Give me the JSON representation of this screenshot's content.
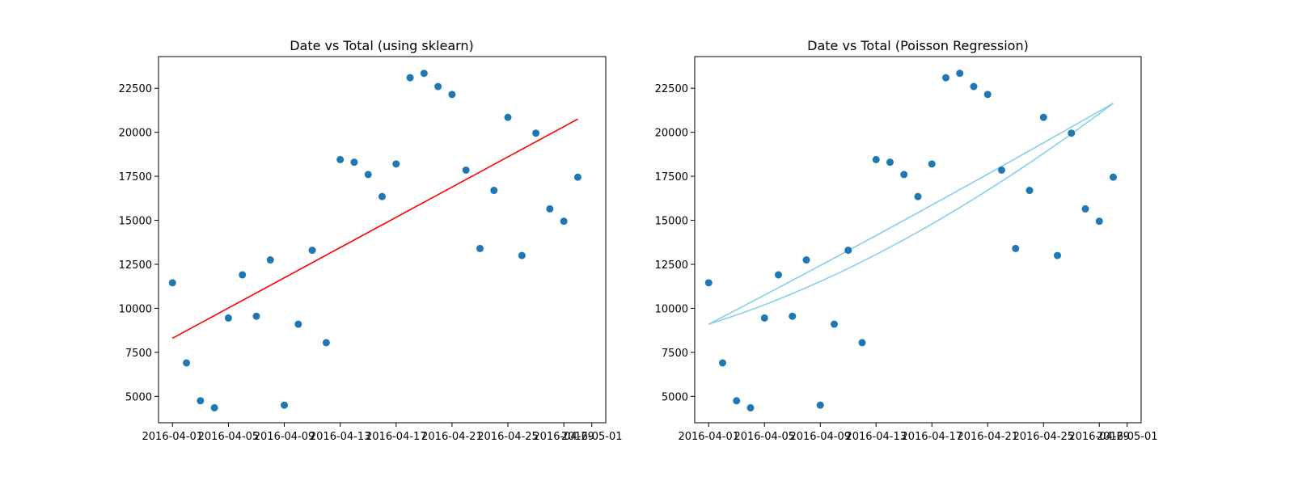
{
  "chart_data": [
    {
      "type": "scatter",
      "title": "Date vs Total (using sklearn)",
      "xlabel": "",
      "ylabel": "",
      "x_tick_labels": [
        "2016-04-01",
        "2016-04-05",
        "2016-04-09",
        "2016-04-13",
        "2016-04-17",
        "2016-04-21",
        "2016-04-25",
        "2016-04-29",
        "2016-05-01"
      ],
      "y_tick_labels": [
        "5000",
        "7500",
        "10000",
        "12500",
        "15000",
        "17500",
        "20000",
        "22500"
      ],
      "xlim": [
        "2016-03-31",
        "2016-05-02"
      ],
      "ylim": [
        3500,
        24300
      ],
      "grid": false,
      "point_color": "#1f77b4",
      "points": [
        {
          "x": "2016-04-01",
          "y": 11450
        },
        {
          "x": "2016-04-02",
          "y": 6900
        },
        {
          "x": "2016-04-03",
          "y": 4750
        },
        {
          "x": "2016-04-04",
          "y": 4350
        },
        {
          "x": "2016-04-05",
          "y": 9450
        },
        {
          "x": "2016-04-06",
          "y": 11900
        },
        {
          "x": "2016-04-07",
          "y": 9550
        },
        {
          "x": "2016-04-08",
          "y": 12750
        },
        {
          "x": "2016-04-09",
          "y": 4500
        },
        {
          "x": "2016-04-10",
          "y": 9100
        },
        {
          "x": "2016-04-11",
          "y": 13300
        },
        {
          "x": "2016-04-12",
          "y": 8050
        },
        {
          "x": "2016-04-13",
          "y": 18450
        },
        {
          "x": "2016-04-14",
          "y": 18300
        },
        {
          "x": "2016-04-15",
          "y": 17600
        },
        {
          "x": "2016-04-16",
          "y": 16350
        },
        {
          "x": "2016-04-17",
          "y": 18200
        },
        {
          "x": "2016-04-18",
          "y": 23100
        },
        {
          "x": "2016-04-19",
          "y": 23350
        },
        {
          "x": "2016-04-20",
          "y": 22600
        },
        {
          "x": "2016-04-21",
          "y": 22150
        },
        {
          "x": "2016-04-22",
          "y": 17850
        },
        {
          "x": "2016-04-23",
          "y": 13400
        },
        {
          "x": "2016-04-24",
          "y": 16700
        },
        {
          "x": "2016-04-25",
          "y": 20850
        },
        {
          "x": "2016-04-26",
          "y": 13000
        },
        {
          "x": "2016-04-27",
          "y": 19950
        },
        {
          "x": "2016-04-28",
          "y": 15650
        },
        {
          "x": "2016-04-29",
          "y": 14950
        },
        {
          "x": "2016-04-30",
          "y": 17450
        }
      ],
      "fit_line": {
        "color": "#ff0000",
        "points": [
          {
            "x": "2016-04-01",
            "y": 8300
          },
          {
            "x": "2016-04-30",
            "y": 20750
          }
        ]
      }
    },
    {
      "type": "scatter",
      "title": "Date vs Total (Poisson Regression)",
      "xlabel": "",
      "ylabel": "",
      "x_tick_labels": [
        "2016-04-01",
        "2016-04-05",
        "2016-04-09",
        "2016-04-13",
        "2016-04-17",
        "2016-04-21",
        "2016-04-25",
        "2016-04-29",
        "2016-05-01"
      ],
      "y_tick_labels": [
        "5000",
        "7500",
        "10000",
        "12500",
        "15000",
        "17500",
        "20000",
        "22500"
      ],
      "xlim": [
        "2016-03-31",
        "2016-05-02"
      ],
      "ylim": [
        3500,
        24300
      ],
      "grid": false,
      "point_color": "#1f77b4",
      "points": [
        {
          "x": "2016-04-01",
          "y": 11450
        },
        {
          "x": "2016-04-02",
          "y": 6900
        },
        {
          "x": "2016-04-03",
          "y": 4750
        },
        {
          "x": "2016-04-04",
          "y": 4350
        },
        {
          "x": "2016-04-05",
          "y": 9450
        },
        {
          "x": "2016-04-06",
          "y": 11900
        },
        {
          "x": "2016-04-07",
          "y": 9550
        },
        {
          "x": "2016-04-08",
          "y": 12750
        },
        {
          "x": "2016-04-09",
          "y": 4500
        },
        {
          "x": "2016-04-10",
          "y": 9100
        },
        {
          "x": "2016-04-11",
          "y": 13300
        },
        {
          "x": "2016-04-12",
          "y": 8050
        },
        {
          "x": "2016-04-13",
          "y": 18450
        },
        {
          "x": "2016-04-14",
          "y": 18300
        },
        {
          "x": "2016-04-15",
          "y": 17600
        },
        {
          "x": "2016-04-16",
          "y": 16350
        },
        {
          "x": "2016-04-17",
          "y": 18200
        },
        {
          "x": "2016-04-18",
          "y": 23100
        },
        {
          "x": "2016-04-19",
          "y": 23350
        },
        {
          "x": "2016-04-20",
          "y": 22600
        },
        {
          "x": "2016-04-21",
          "y": 22150
        },
        {
          "x": "2016-04-22",
          "y": 17850
        },
        {
          "x": "2016-04-23",
          "y": 13400
        },
        {
          "x": "2016-04-24",
          "y": 16700
        },
        {
          "x": "2016-04-25",
          "y": 20850
        },
        {
          "x": "2016-04-26",
          "y": 13000
        },
        {
          "x": "2016-04-27",
          "y": 19950
        },
        {
          "x": "2016-04-28",
          "y": 15650
        },
        {
          "x": "2016-04-29",
          "y": 14950
        },
        {
          "x": "2016-04-30",
          "y": 17450
        }
      ],
      "fit_curves": {
        "color": "#87ceeb",
        "curves": [
          {
            "start": {
              "x": "2016-04-01",
              "y": 9100
            },
            "end": {
              "x": "2016-04-30",
              "y": 21650
            },
            "mid": {
              "x": "2016-04-15",
              "y": 15000
            }
          },
          {
            "start": {
              "x": "2016-04-01",
              "y": 9100
            },
            "end": {
              "x": "2016-04-30",
              "y": 21650
            },
            "mid": {
              "x": "2016-04-15",
              "y": 13900
            }
          }
        ]
      }
    }
  ]
}
